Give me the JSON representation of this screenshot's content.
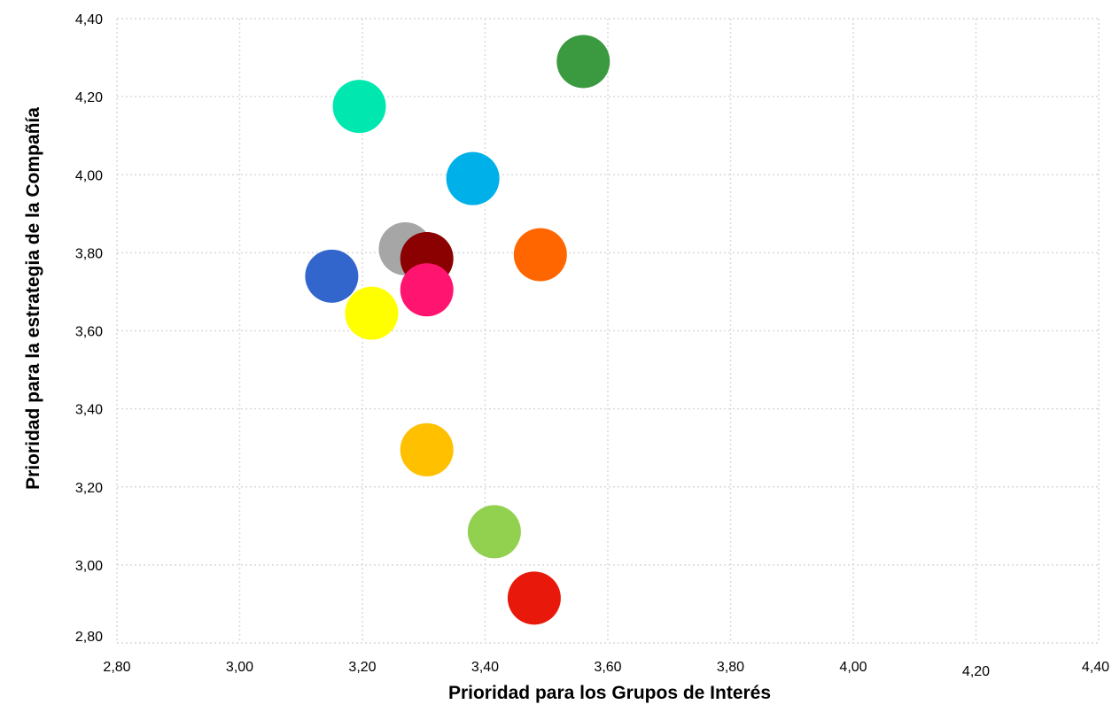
{
  "chart_data": {
    "type": "scatter",
    "xlabel": "Prioridad para los Grupos de Interés",
    "ylabel": "Prioridad para la estrategia de la Compañía",
    "xlim": [
      2.8,
      4.4
    ],
    "ylim": [
      2.8,
      4.4
    ],
    "grid": true,
    "x_ticks": [
      "2,80",
      "3,00",
      "3,20",
      "3,40",
      "3,60",
      "3,80",
      "4,00",
      "4,20",
      "4,40"
    ],
    "y_ticks": [
      "2,80",
      "3,00",
      "3,20",
      "3,40",
      "3,60",
      "3,80",
      "4,00",
      "4,20",
      "4,40"
    ],
    "points": [
      {
        "x": 3.56,
        "y": 4.29,
        "color": "#3b9a3f"
      },
      {
        "x": 3.195,
        "y": 4.175,
        "color": "#00e8b0"
      },
      {
        "x": 3.38,
        "y": 3.99,
        "color": "#00b0e8"
      },
      {
        "x": 3.27,
        "y": 3.81,
        "color": "#a6a6a6"
      },
      {
        "x": 3.305,
        "y": 3.785,
        "color": "#8b0000"
      },
      {
        "x": 3.49,
        "y": 3.795,
        "color": "#ff6600"
      },
      {
        "x": 3.15,
        "y": 3.74,
        "color": "#3366cc"
      },
      {
        "x": 3.305,
        "y": 3.705,
        "color": "#ff1470"
      },
      {
        "x": 3.215,
        "y": 3.645,
        "color": "#ffff00"
      },
      {
        "x": 3.305,
        "y": 3.295,
        "color": "#ffc000"
      },
      {
        "x": 3.415,
        "y": 3.085,
        "color": "#92d050"
      },
      {
        "x": 3.48,
        "y": 2.915,
        "color": "#e8190a"
      }
    ]
  }
}
